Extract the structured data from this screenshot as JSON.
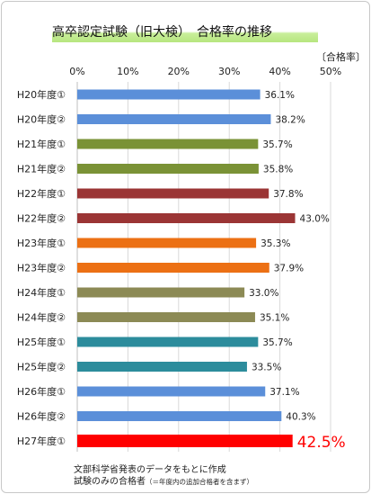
{
  "title": "高卒認定試験（旧大検）　合格率の推移",
  "unit_label": "〔合格率〕",
  "source": {
    "line1": "文部科学省発表のデータをもとに作成",
    "line2_main": "試験のみの合格者",
    "line2_note": "（＝年度内の追加合格者を含まず）"
  },
  "chart_data": {
    "type": "bar",
    "orientation": "horizontal",
    "xlim": [
      0,
      50
    ],
    "ticks": [
      "0%",
      "10%",
      "20%",
      "30%",
      "40%",
      "50%"
    ],
    "tick_values": [
      0,
      10,
      20,
      30,
      40,
      50
    ],
    "grid": true,
    "categories": [
      "H20年度①",
      "H20年度②",
      "H21年度①",
      "H21年度②",
      "H22年度①",
      "H22年度②",
      "H23年度①",
      "H23年度②",
      "H24年度①",
      "H24年度②",
      "H25年度①",
      "H25年度②",
      "H26年度①",
      "H26年度②",
      "H27年度①"
    ],
    "values": [
      36.1,
      38.2,
      35.7,
      35.8,
      37.8,
      43.0,
      35.3,
      37.9,
      33.0,
      35.1,
      35.7,
      33.5,
      37.1,
      40.3,
      42.5
    ],
    "value_labels": [
      "36.1%",
      "38.2%",
      "35.7%",
      "35.8%",
      "37.8%",
      "43.0%",
      "35.3%",
      "37.9%",
      "33.0%",
      "35.1%",
      "35.7%",
      "33.5%",
      "37.1%",
      "40.3%",
      "42.5%"
    ],
    "colors": [
      "#5b8fd9",
      "#5b8fd9",
      "#7a9236",
      "#7a9236",
      "#9b3535",
      "#9b3535",
      "#ec7014",
      "#ec7014",
      "#8c8a55",
      "#8c8a55",
      "#2c8c9c",
      "#2c8c9c",
      "#5b8fd9",
      "#5b8fd9",
      "#ff0000"
    ],
    "highlight_label_color": "#ff0000"
  }
}
